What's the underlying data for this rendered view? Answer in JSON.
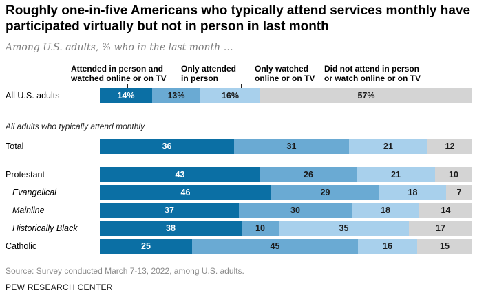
{
  "title": "Roughly one-in-five Americans who typically attend services monthly have participated virtually but not in person in last month",
  "subtitle": "Among U.S. adults, % who in the last month …",
  "section_label": "All adults who typically attend monthly",
  "source": "Source: Survey conducted March 7-13, 2022, among U.S. adults.",
  "org": "PEW RESEARCH CENTER",
  "colors": [
    "#0b6fa4",
    "#6aaad3",
    "#a8d0ec",
    "#d4d4d4"
  ],
  "legend": [
    {
      "line1": "Attended in person and",
      "line2": "watched online or on TV"
    },
    {
      "line1": "Only attended",
      "line2": "in person"
    },
    {
      "line1": "Only watched",
      "line2": "online or on TV"
    },
    {
      "line1": "Did not attend in person",
      "line2": "or watch online or on TV"
    }
  ],
  "chart_data": {
    "type": "bar",
    "orientation": "horizontal",
    "stacked": true,
    "xlim": [
      0,
      100
    ],
    "series": [
      {
        "name": "Attended in person and watched online or on TV"
      },
      {
        "name": "Only attended in person"
      },
      {
        "name": "Only watched online or on TV"
      },
      {
        "name": "Did not attend in person or watch online or on TV"
      }
    ],
    "rows": [
      {
        "label": "All U.S. adults",
        "values": [
          14,
          13,
          16,
          57
        ],
        "labels": [
          "14%",
          "13%",
          "16%",
          "57%"
        ],
        "italic": false
      },
      {
        "label": "Total",
        "values": [
          36,
          31,
          21,
          12
        ],
        "labels": [
          "36",
          "31",
          "21",
          "12"
        ],
        "italic": false
      },
      {
        "label": "Protestant",
        "values": [
          43,
          26,
          21,
          10
        ],
        "labels": [
          "43",
          "26",
          "21",
          "10"
        ],
        "italic": false
      },
      {
        "label": "Evangelical",
        "values": [
          46,
          29,
          18,
          7
        ],
        "labels": [
          "46",
          "29",
          "18",
          "7"
        ],
        "italic": true
      },
      {
        "label": "Mainline",
        "values": [
          37,
          30,
          18,
          14
        ],
        "labels": [
          "37",
          "30",
          "18",
          "14"
        ],
        "italic": true
      },
      {
        "label": "Historically Black",
        "values": [
          38,
          10,
          35,
          17
        ],
        "labels": [
          "38",
          "10",
          "35",
          "17"
        ],
        "italic": true
      },
      {
        "label": "Catholic",
        "values": [
          25,
          45,
          16,
          15
        ],
        "labels": [
          "25",
          "45",
          "16",
          "15"
        ],
        "italic": false
      }
    ]
  }
}
